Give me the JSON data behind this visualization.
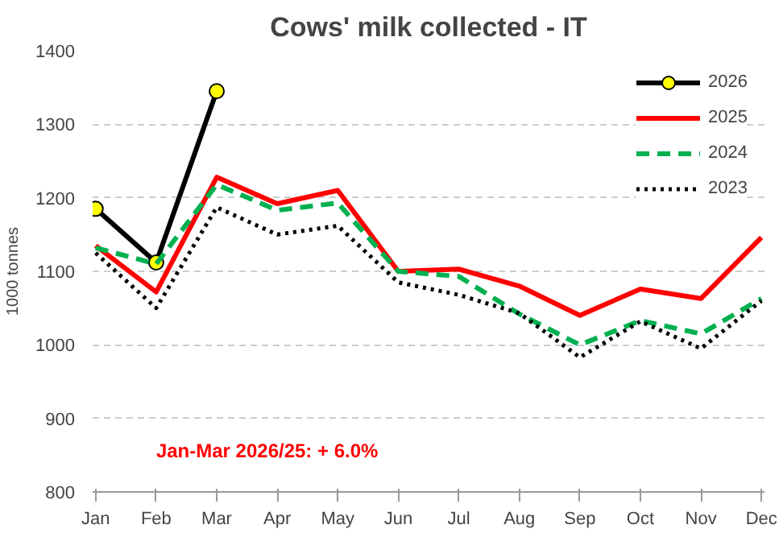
{
  "chart_data": {
    "type": "line",
    "title": "Cows' milk collected - IT",
    "ylabel": "1000 tonnes",
    "categories": [
      "Jan",
      "Feb",
      "Mar",
      "Apr",
      "May",
      "Jun",
      "Jul",
      "Aug",
      "Sep",
      "Oct",
      "Nov",
      "Dec"
    ],
    "series": [
      {
        "name": "2026",
        "color": "#000000",
        "marker": "circle",
        "line_style": "solid",
        "values": [
          1185,
          1112,
          1345,
          null,
          null,
          null,
          null,
          null,
          null,
          null,
          null,
          null
        ]
      },
      {
        "name": "2025",
        "color": "#ff0000",
        "marker": "none",
        "line_style": "solid",
        "values": [
          1135,
          1072,
          1228,
          1192,
          1210,
          1100,
          1103,
          1080,
          1040,
          1076,
          1063,
          1146
        ]
      },
      {
        "name": "2024",
        "color": "#00b050",
        "marker": "none",
        "line_style": "dashed",
        "values": [
          1132,
          1110,
          1218,
          1183,
          1193,
          1100,
          1093,
          1042,
          1000,
          1033,
          1015,
          1063
        ]
      },
      {
        "name": "2023",
        "color": "#000000",
        "marker": "none",
        "line_style": "dotted",
        "values": [
          1125,
          1050,
          1187,
          1150,
          1162,
          1085,
          1068,
          1043,
          983,
          1032,
          995,
          1060
        ]
      }
    ],
    "ylim": [
      800,
      1400
    ],
    "yticks": [
      800,
      900,
      1000,
      1100,
      1200,
      1300,
      1400
    ],
    "grid": "y",
    "legend": "top right",
    "annotations": [
      {
        "text": "Jan-Mar 2026/25: + 6.0%"
      }
    ]
  }
}
